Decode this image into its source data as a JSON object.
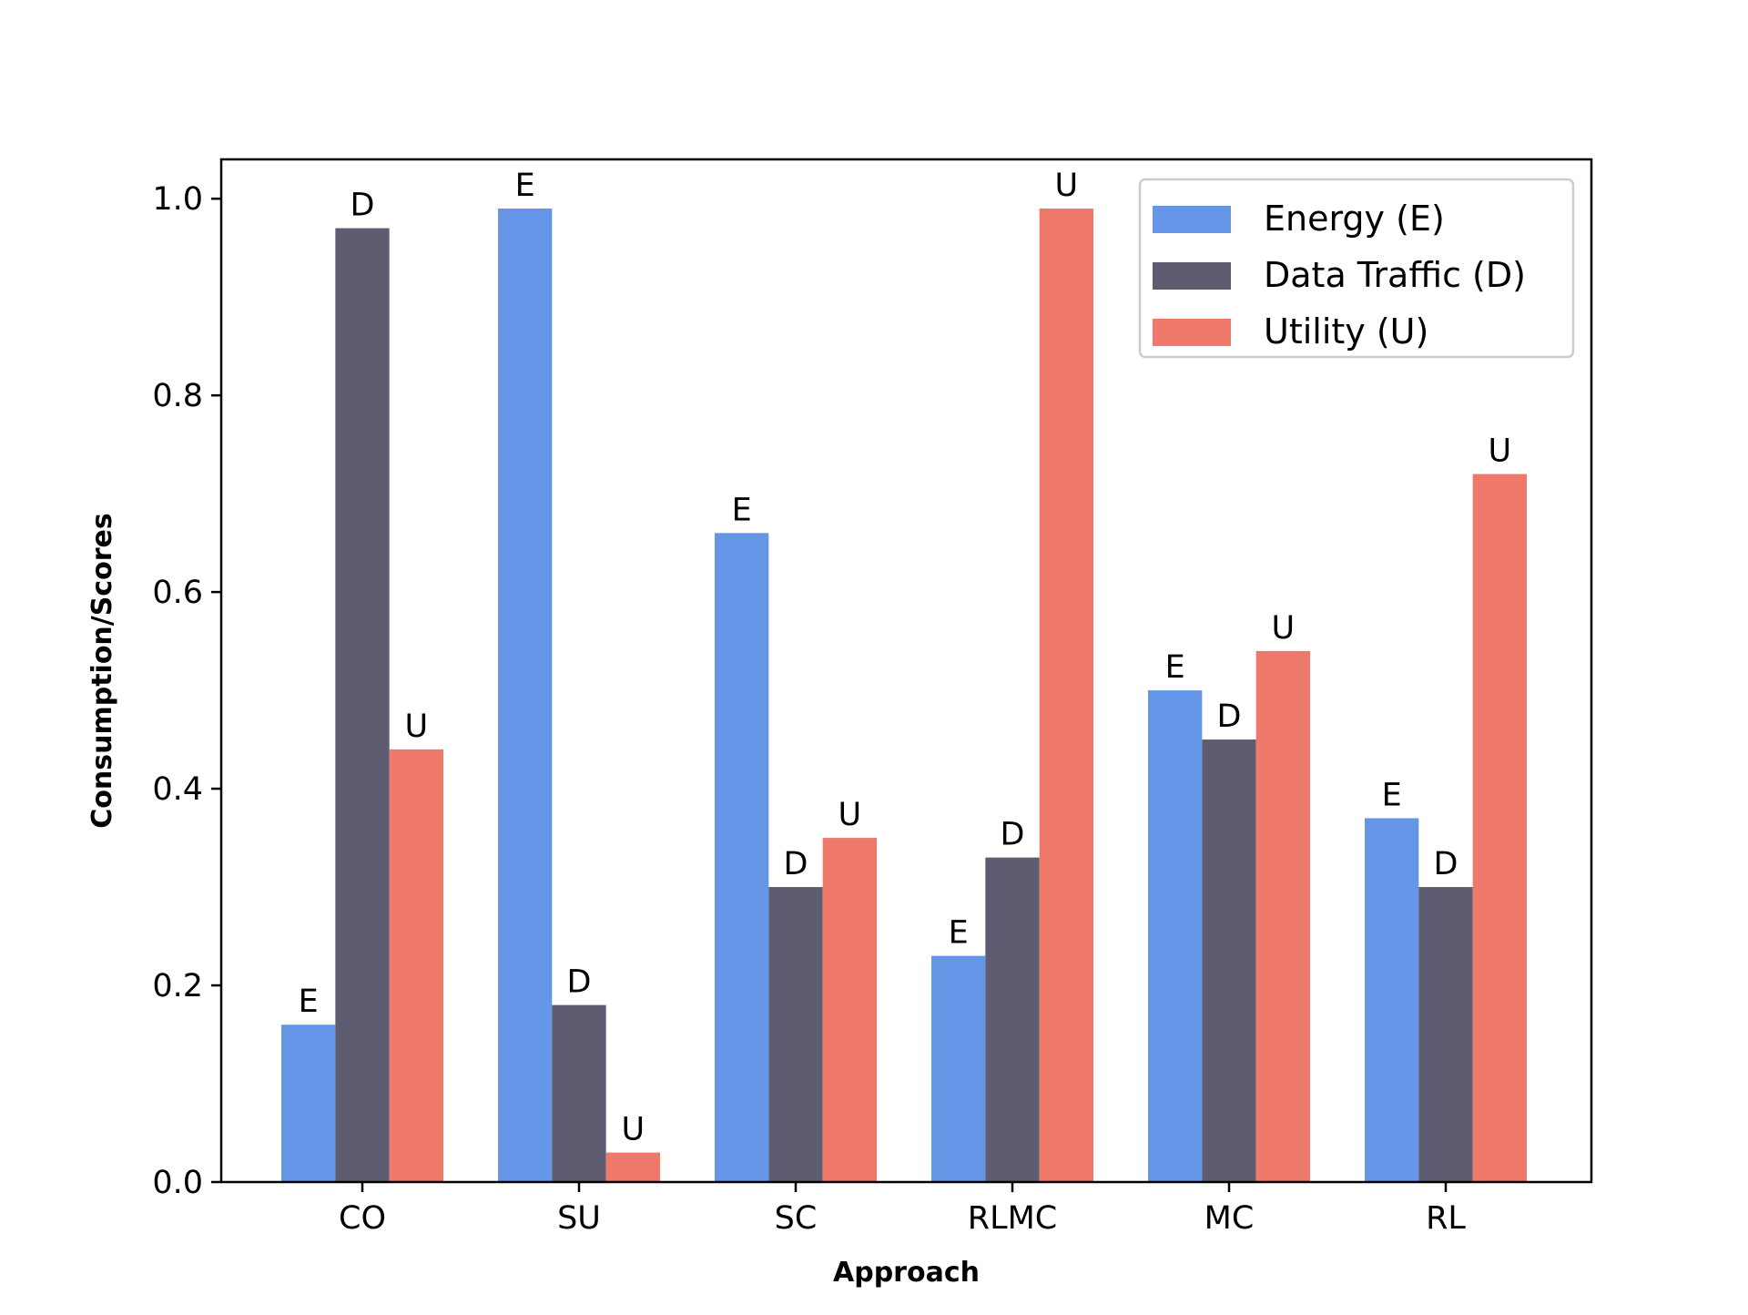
{
  "chart_data": {
    "type": "bar",
    "title": "",
    "xlabel": "Approach",
    "ylabel": "Consumption/Scores",
    "categories": [
      "CO",
      "SU",
      "SC",
      "RLMC",
      "MC",
      "RL"
    ],
    "ylim": [
      0,
      1.04
    ],
    "yticks": [
      "0.0",
      "0.2",
      "0.4",
      "0.6",
      "0.8",
      "1.0"
    ],
    "grid": false,
    "legend_position": "top-right",
    "series": [
      {
        "name": "Energy (E)",
        "short": "E",
        "color": "#6495E6",
        "values": [
          0.16,
          0.99,
          0.66,
          0.23,
          0.5,
          0.37
        ]
      },
      {
        "name": "Data Traffic (D)",
        "short": "D",
        "color": "#5D5C70",
        "values": [
          0.97,
          0.18,
          0.3,
          0.33,
          0.45,
          0.3
        ]
      },
      {
        "name": "Utility (U)",
        "short": "U",
        "color": "#EE786A",
        "values": [
          0.44,
          0.03,
          0.35,
          0.99,
          0.54,
          0.72
        ]
      }
    ]
  }
}
